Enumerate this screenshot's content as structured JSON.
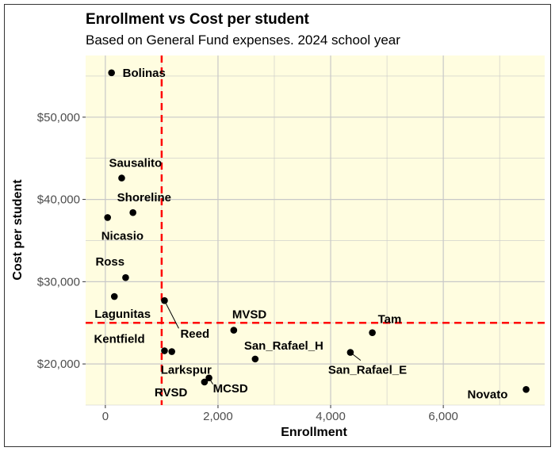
{
  "chart_data": {
    "type": "scatter",
    "title": "Enrollment vs Cost per student",
    "subtitle": "Based on General Fund expenses. 2024 school year",
    "xlabel": "Enrollment",
    "ylabel": "Cost per student",
    "xlim": [
      -350,
      7800
    ],
    "ylim": [
      15000,
      57500
    ],
    "x_ticks": [
      0,
      2000,
      4000,
      6000
    ],
    "x_tick_labels": [
      "0",
      "2,000",
      "4,000",
      "6,000"
    ],
    "y_ticks": [
      20000,
      30000,
      40000,
      50000
    ],
    "y_tick_labels": [
      "$20,000",
      "$30,000",
      "$40,000",
      "$50,000"
    ],
    "grid": true,
    "reference_lines": {
      "x": 1000,
      "y": 25000,
      "color": "#ff0000",
      "style": "dashed"
    },
    "point_color": "#000000",
    "panel_color": "#fffde0",
    "points": [
      {
        "label": "Bolinas",
        "x": 110,
        "y": 55400
      },
      {
        "label": "Sausalito",
        "x": 290,
        "y": 42600
      },
      {
        "label": "Shoreline",
        "x": 490,
        "y": 38400
      },
      {
        "label": "Nicasio",
        "x": 40,
        "y": 37800
      },
      {
        "label": "Ross",
        "x": 360,
        "y": 30500
      },
      {
        "label": "Lagunitas",
        "x": 160,
        "y": 28200
      },
      {
        "label": "Reed",
        "x": 1050,
        "y": 27700
      },
      {
        "label": "Kentfield",
        "x": 1050,
        "y": 21600
      },
      {
        "label": "Larkspur",
        "x": 1180,
        "y": 21500
      },
      {
        "label": "MVSD",
        "x": 2280,
        "y": 24100
      },
      {
        "label": "San_Rafael_H",
        "x": 2660,
        "y": 20600
      },
      {
        "label": "RVSD",
        "x": 1760,
        "y": 17800
      },
      {
        "label": "MCSD",
        "x": 1840,
        "y": 18300
      },
      {
        "label": "Tam",
        "x": 4740,
        "y": 23800
      },
      {
        "label": "San_Rafael_E",
        "x": 4350,
        "y": 21400
      },
      {
        "label": "Novato",
        "x": 7470,
        "y": 16900
      }
    ]
  }
}
